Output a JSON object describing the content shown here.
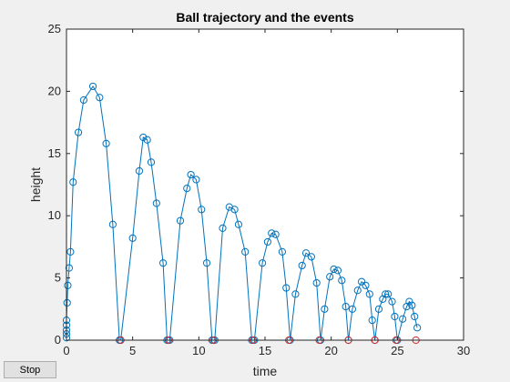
{
  "controls": {
    "stop_label": "Stop"
  },
  "chart_data": {
    "type": "line",
    "title": "Ball trajectory and the events",
    "xlabel": "time",
    "ylabel": "height",
    "xlim": [
      0,
      30
    ],
    "ylim": [
      0,
      25
    ],
    "xticks": [
      0,
      5,
      10,
      15,
      20,
      25,
      30
    ],
    "yticks": [
      0,
      5,
      10,
      15,
      20,
      25
    ],
    "grid": false,
    "colors": {
      "trajectory": "#0072bd",
      "events": "#d62728",
      "axes": "#262626",
      "background": "#ffffff"
    },
    "series": [
      {
        "style": "line-with-circle-markers",
        "color": "#0072bd",
        "x": [
          0,
          0,
          0,
          0,
          0,
          0.05,
          0.1,
          0.2,
          0.3,
          0.5,
          0.9,
          1.3,
          2.0,
          2.5,
          3.0,
          3.5,
          4.0,
          4.1,
          5.0,
          5.5,
          5.8,
          6.1,
          6.4,
          6.8,
          7.3,
          7.6,
          7.8,
          8.6,
          9.1,
          9.4,
          9.8,
          10.2,
          10.6,
          11.0,
          11.2,
          11.8,
          12.3,
          12.7,
          13.0,
          13.5,
          14.0,
          14.2,
          14.8,
          15.2,
          15.5,
          15.8,
          16.3,
          16.6,
          16.9,
          17.3,
          17.8,
          18.1,
          18.5,
          18.9,
          19.2,
          19.5,
          19.9,
          20.2,
          20.5,
          20.8,
          21.1,
          21.3,
          21.6,
          22.0,
          22.3,
          22.6,
          22.9,
          23.1,
          23.3,
          23.6,
          23.9,
          24.1,
          24.3,
          24.6,
          24.8,
          25.0,
          25.4,
          25.7,
          25.9,
          26.1,
          26.3,
          26.5
        ],
        "y": [
          0.2,
          0.5,
          0.8,
          1.2,
          1.6,
          3.0,
          4.4,
          5.8,
          7.1,
          12.7,
          16.7,
          19.3,
          20.4,
          19.5,
          15.8,
          9.3,
          0,
          0,
          8.2,
          13.6,
          16.3,
          16.1,
          14.3,
          11.0,
          6.2,
          0,
          0,
          9.6,
          12.2,
          13.3,
          12.9,
          10.5,
          6.2,
          0,
          0,
          9.0,
          10.7,
          10.5,
          9.3,
          7.1,
          0,
          0,
          6.2,
          7.9,
          8.6,
          8.5,
          7.1,
          4.2,
          0,
          3.7,
          6.0,
          7.0,
          6.7,
          4.6,
          0,
          2.5,
          5.1,
          5.7,
          5.6,
          4.8,
          2.7,
          0,
          2.5,
          4.0,
          4.7,
          4.4,
          3.7,
          1.6,
          0,
          2.5,
          3.3,
          3.7,
          3.7,
          3.1,
          1.9,
          0,
          1.7,
          2.7,
          3.1,
          2.8,
          1.9,
          1.0
        ]
      },
      {
        "style": "event-circle-markers",
        "color": "#d62728",
        "x": [
          4.1,
          7.7,
          11.1,
          14.1,
          16.8,
          19.1,
          21.3,
          23.3,
          24.9,
          26.4
        ],
        "y": [
          0,
          0,
          0,
          0,
          0,
          0,
          0,
          0,
          0,
          0
        ]
      }
    ]
  }
}
